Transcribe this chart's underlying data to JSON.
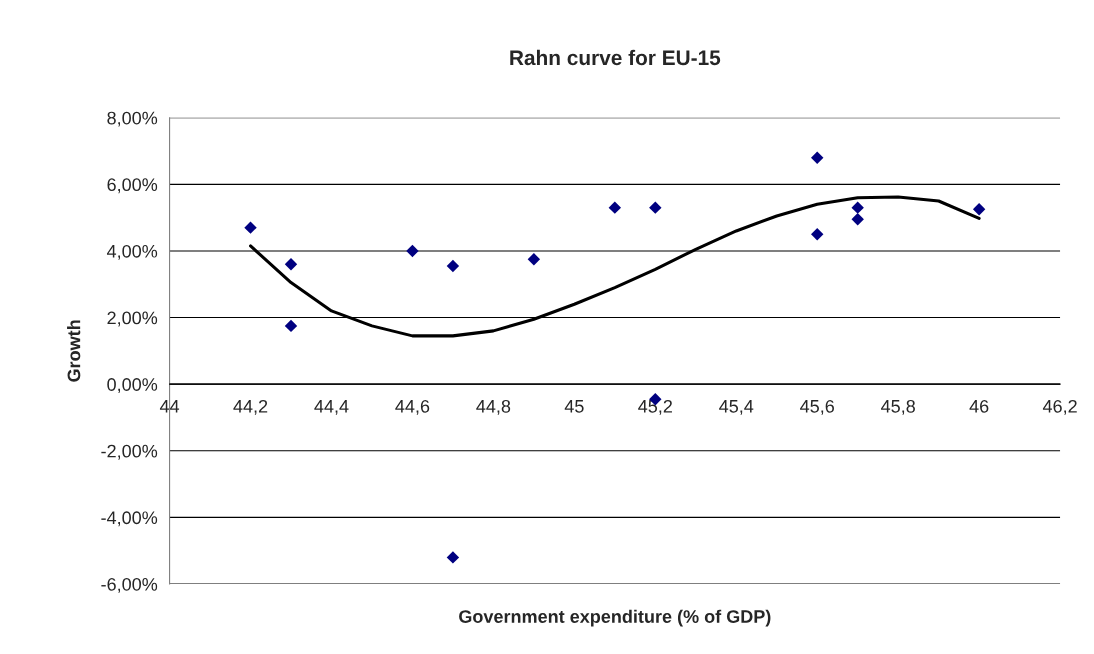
{
  "chart_data": {
    "type": "scatter",
    "title": "Rahn curve for EU-15",
    "xlabel": "Government expenditure (% of GDP)",
    "ylabel": "Growth",
    "xlim": [
      44,
      46.2
    ],
    "ylim": [
      -6,
      8
    ],
    "xticks": [
      {
        "value": 44,
        "label": "44"
      },
      {
        "value": 44.2,
        "label": "44,2"
      },
      {
        "value": 44.4,
        "label": "44,4"
      },
      {
        "value": 44.6,
        "label": "44,6"
      },
      {
        "value": 44.8,
        "label": "44,8"
      },
      {
        "value": 45,
        "label": "45"
      },
      {
        "value": 45.2,
        "label": "45,2"
      },
      {
        "value": 45.4,
        "label": "45,4"
      },
      {
        "value": 45.6,
        "label": "45,6"
      },
      {
        "value": 45.8,
        "label": "45,8"
      },
      {
        "value": 46,
        "label": "46"
      },
      {
        "value": 46.2,
        "label": "46,2"
      }
    ],
    "yticks": [
      {
        "value": -6,
        "label": "-6,00%"
      },
      {
        "value": -4,
        "label": "-4,00%"
      },
      {
        "value": -2,
        "label": "-2,00%"
      },
      {
        "value": 0,
        "label": "0,00%"
      },
      {
        "value": 2,
        "label": "2,00%"
      },
      {
        "value": 4,
        "label": "4,00%"
      },
      {
        "value": 6,
        "label": "6,00%"
      },
      {
        "value": 8,
        "label": "8,00%"
      }
    ],
    "grid": "y",
    "series": [
      {
        "color": "#000080",
        "marker": "diamond",
        "x": [
          44.2,
          44.3,
          44.3,
          44.6,
          44.7,
          44.7,
          44.9,
          45.1,
          45.2,
          45.2,
          45.6,
          45.6,
          45.7,
          45.7,
          46
        ],
        "values": [
          4.7,
          3.6,
          1.75,
          4.0,
          3.55,
          -5.2,
          3.75,
          5.3,
          5.3,
          -0.45,
          6.8,
          4.5,
          5.3,
          4.95,
          5.25
        ]
      },
      {
        "type": "line",
        "color": "#000000",
        "line_style": "solid",
        "x": [
          44.2,
          44.3,
          44.4,
          44.5,
          44.6,
          44.7,
          44.8,
          44.9,
          45,
          45.1,
          45.2,
          45.3,
          45.4,
          45.5,
          45.6,
          45.7,
          45.8,
          45.9,
          46
        ],
        "values": [
          4.15,
          3.05,
          2.2,
          1.75,
          1.45,
          1.45,
          1.6,
          1.95,
          2.4,
          2.9,
          3.45,
          4.05,
          4.6,
          5.05,
          5.4,
          5.6,
          5.62,
          5.5,
          4.98
        ]
      }
    ]
  }
}
